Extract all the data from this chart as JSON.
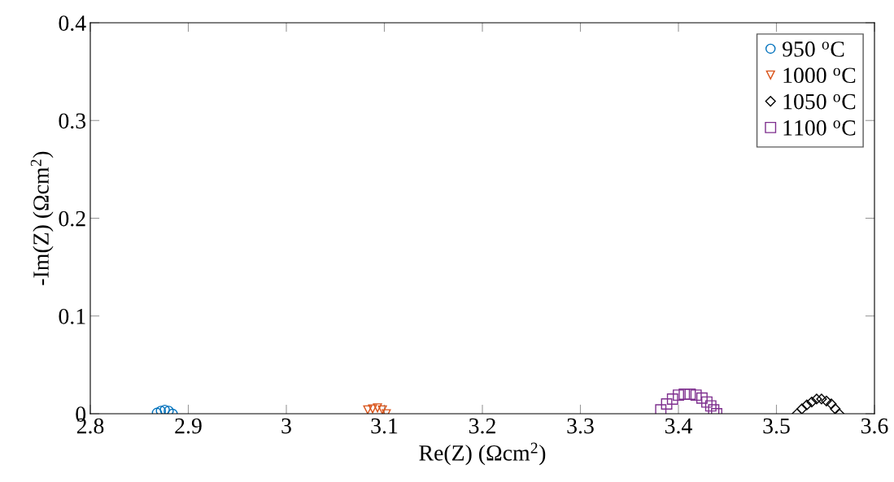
{
  "chart_data": {
    "type": "scatter",
    "xlabel": "Re(Z) (Ωcm$^{2}$)",
    "ylabel": "-Im(Z) (Ωcm$^{2}$)",
    "xlim": [
      2.8,
      3.6
    ],
    "ylim": [
      0,
      0.4
    ],
    "xticks": [
      2.8,
      2.9,
      3,
      3.1,
      3.2,
      3.3,
      3.4,
      3.5,
      3.6
    ],
    "yticks": [
      0,
      0.1,
      0.2,
      0.3,
      0.4
    ],
    "grid": false,
    "legend": "top right",
    "series": [
      {
        "name": "950 $^{o}$C",
        "color": "#0072bd",
        "marker": "circle",
        "x": [
          2.868,
          2.872,
          2.876,
          2.88,
          2.884
        ],
        "values": [
          0.001,
          0.003,
          0.004,
          0.003,
          0.0
        ]
      },
      {
        "name": "1000 $^{o}$C",
        "color": "#d95319",
        "marker": "triangle",
        "x": [
          3.083,
          3.088,
          3.093,
          3.098,
          3.102
        ],
        "values": [
          0.004,
          0.005,
          0.006,
          0.004,
          0.0
        ]
      },
      {
        "name": "1050 $^{o}$C",
        "color": "#000000",
        "marker": "diamond",
        "x": [
          3.521,
          3.526,
          3.531,
          3.536,
          3.541,
          3.546,
          3.551,
          3.556,
          3.56,
          3.564
        ],
        "values": [
          0.0,
          0.005,
          0.009,
          0.012,
          0.015,
          0.015,
          0.013,
          0.01,
          0.005,
          0.0
        ]
      },
      {
        "name": "1100 $^{o}$C",
        "color": "#7e2f8e",
        "marker": "square",
        "x": [
          3.382,
          3.388,
          3.394,
          3.4,
          3.406,
          3.412,
          3.418,
          3.424,
          3.429,
          3.433,
          3.436,
          3.439
        ],
        "values": [
          0.004,
          0.01,
          0.015,
          0.019,
          0.02,
          0.02,
          0.019,
          0.016,
          0.012,
          0.008,
          0.004,
          0.0
        ]
      }
    ]
  }
}
